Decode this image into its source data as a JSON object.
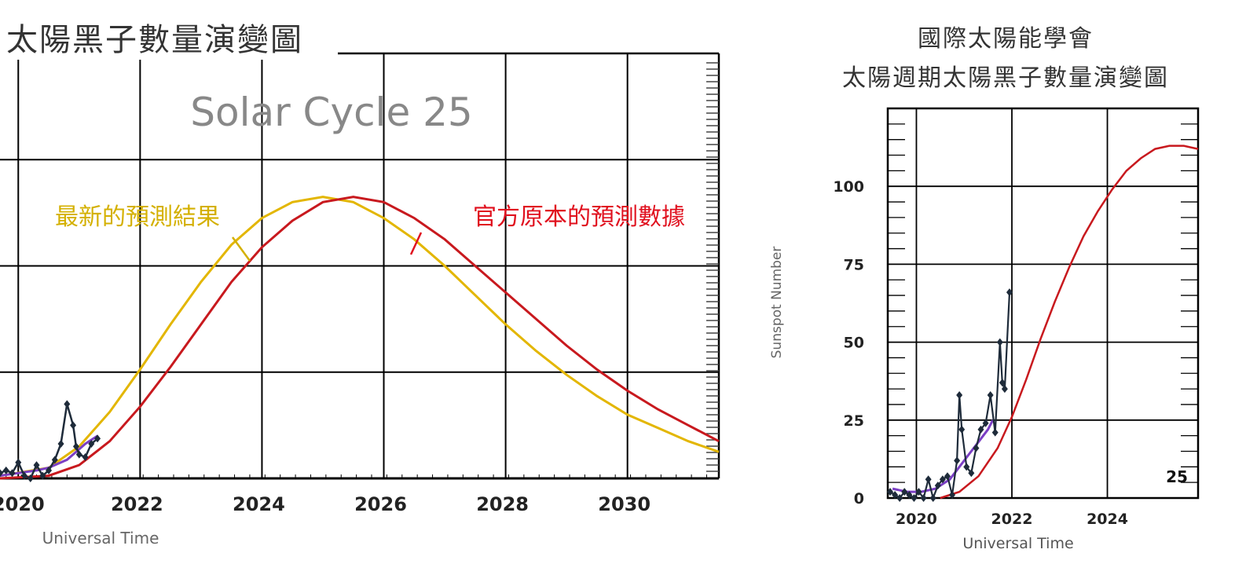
{
  "left_panel": {
    "header": "太陽黑子數量演變圖"
  },
  "right_panel": {
    "title_line1": "國際太陽能學會",
    "title_line2": "太陽週期太陽黑子數量演變圖"
  },
  "colors": {
    "predicted_latest": "#E3B600",
    "predicted_original": "#C8191E",
    "observed": "#1E2B3A",
    "smoothed": "#7B3FC4",
    "grid": "#000000",
    "label_latest": "#D4B000",
    "label_original": "#E0101E"
  },
  "chart_data": [
    {
      "type": "line",
      "title": "Solar Cycle 25",
      "xlabel": "Universal Time",
      "ylabel": "",
      "x_ticks": [
        "2020",
        "2022",
        "2024",
        "2026",
        "2028",
        "2030"
      ],
      "xlim": [
        2019.7,
        2031.5
      ],
      "ylim": [
        0,
        160
      ],
      "grid": true,
      "annotations": [
        "最新的預測結果",
        "官方原本的預測數據"
      ],
      "series": [
        {
          "name": "最新的預測結果",
          "x": [
            2019.7,
            2020.5,
            2021.0,
            2021.5,
            2022.0,
            2022.5,
            2023.0,
            2023.5,
            2024.0,
            2024.5,
            2025.0,
            2025.5,
            2026.0,
            2026.5,
            2027.0,
            2027.5,
            2028.0,
            2028.5,
            2029.0,
            2029.5,
            2030.0,
            2030.5,
            2031.0,
            2031.5
          ],
          "values": [
            1,
            4,
            12,
            25,
            41,
            58,
            74,
            88,
            98,
            104,
            106,
            104,
            98,
            90,
            80,
            69,
            58,
            48,
            39,
            31,
            24,
            19,
            14,
            10
          ]
        },
        {
          "name": "官方原本的預測數據",
          "x": [
            2019.7,
            2020.5,
            2021.0,
            2021.5,
            2022.0,
            2022.5,
            2023.0,
            2023.5,
            2024.0,
            2024.5,
            2025.0,
            2025.5,
            2026.0,
            2026.5,
            2027.0,
            2027.5,
            2028.0,
            2028.5,
            2029.0,
            2029.5,
            2030.0,
            2030.5,
            2031.0,
            2031.5
          ],
          "values": [
            0,
            1,
            5,
            14,
            27,
            42,
            58,
            74,
            87,
            97,
            104,
            106,
            104,
            98,
            90,
            80,
            70,
            60,
            50,
            41,
            33,
            26,
            20,
            14
          ]
        },
        {
          "x": [
            2019.7,
            2020.0,
            2020.3,
            2020.5,
            2020.8,
            2020.95,
            2021.1,
            2021.3
          ],
          "values": [
            1,
            2,
            3,
            4,
            7,
            10,
            13,
            16
          ]
        },
        {
          "x": [
            2019.7,
            2019.8,
            2019.9,
            2020.0,
            2020.1,
            2020.2,
            2020.3,
            2020.4,
            2020.5,
            2020.6,
            2020.7,
            2020.8,
            2020.9,
            2020.95,
            2021.0,
            2021.1,
            2021.2,
            2021.3
          ],
          "values": [
            2,
            3,
            2,
            6,
            1,
            0,
            5,
            1,
            3,
            7,
            13,
            28,
            20,
            12,
            9,
            8,
            13,
            15
          ]
        }
      ]
    },
    {
      "type": "line",
      "title": "",
      "xlabel": "Universal Time",
      "ylabel": "Sunspot Number",
      "x_ticks": [
        "2020",
        "2022",
        "2024"
      ],
      "y_ticks": [
        0,
        25,
        50,
        75,
        100
      ],
      "xlim": [
        2019.4,
        2025.9
      ],
      "ylim": [
        0,
        125
      ],
      "grid": true,
      "annotations": [
        "25"
      ],
      "series": [
        {
          "x": [
            2020.5,
            2020.9,
            2021.3,
            2021.7,
            2022.0,
            2022.3,
            2022.6,
            2022.9,
            2023.2,
            2023.5,
            2023.8,
            2024.1,
            2024.4,
            2024.7,
            2025.0,
            2025.3,
            2025.6,
            2025.9
          ],
          "values": [
            0,
            2,
            7,
            16,
            26,
            38,
            51,
            63,
            74,
            84,
            92,
            99,
            105,
            109,
            112,
            113,
            113,
            112
          ]
        },
        {
          "x": [
            2019.5,
            2019.8,
            2020.1,
            2020.4,
            2020.7,
            2020.9,
            2021.1,
            2021.3,
            2021.5,
            2021.6
          ],
          "values": [
            3,
            2,
            2,
            3,
            6,
            10,
            14,
            18,
            22,
            25
          ]
        },
        {
          "x": [
            2019.45,
            2019.55,
            2019.65,
            2019.75,
            2019.85,
            2019.95,
            2020.05,
            2020.15,
            2020.25,
            2020.35,
            2020.45,
            2020.55,
            2020.65,
            2020.75,
            2020.85,
            2020.9,
            2020.95,
            2021.05,
            2021.15,
            2021.25,
            2021.35,
            2021.45,
            2021.55,
            2021.65,
            2021.75,
            2021.8,
            2021.85,
            2021.95
          ],
          "values": [
            2,
            1,
            0,
            2,
            1,
            0,
            2,
            0,
            6,
            0,
            4,
            6,
            7,
            1,
            12,
            33,
            22,
            10,
            8,
            16,
            22,
            24,
            33,
            21,
            50,
            37,
            35,
            66
          ]
        }
      ]
    }
  ]
}
